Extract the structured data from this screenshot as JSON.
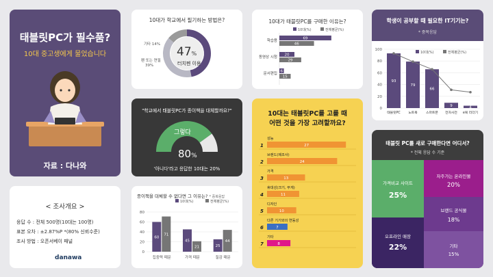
{
  "hero": {
    "title": "태블릿PC가 필수품?",
    "subtitle": "10대 중고생에게 물었습니다",
    "source": "자료 : 다나와"
  },
  "survey": {
    "heading": "< 조사개요 >",
    "lines": [
      "응답 수 : 전체 500명(10대는 100명)",
      "표본 오차 : ±2.87%P *(80% 신뢰수준)",
      "조사 방법 : 오픈서베이 패널"
    ],
    "logo": "danawa"
  },
  "study": {
    "title": "10대가 학교에서 필기하는 방법은?",
    "center_value": "47",
    "center_unit": "%",
    "center_label": "터치펜 이용",
    "other1_label": "기타 14%",
    "other2_label_a": "펜 또는 연필",
    "other2_label_b": "39%"
  },
  "replace": {
    "title": "\"학교에서 태블릿PC가 종이책을 대체할까요?\"",
    "gauge_label": "그렇다",
    "value": "80",
    "unit": "%",
    "note": "'아니다'라고 응답한 10대는 20%"
  },
  "reasons": {
    "title": "종이책을 대체할 수 없다면 그 이유는?",
    "suffix": "* 중복응답"
  },
  "purchase": {
    "title": "10대가 태블릿PC를 구매한 이유는?"
  },
  "consider": {
    "title_line1": "10대는 태블릿PC를 고를 때",
    "title_line2": "어떤 것을 가장 고려할까요?"
  },
  "it": {
    "title": "학생이 공부할 때 필요한 IT기기는?",
    "subtitle": "* 중복응답"
  },
  "where": {
    "title": "태블릿 PC를 새로 구매한다면  어디서?",
    "subtitle": "* 전체 응답 수 기준",
    "cells": [
      {
        "label": "가격비교 사이트",
        "value": "25%"
      },
      {
        "label": "자주가는 온라인몰",
        "value": "20%"
      },
      {
        "label": "브랜드 공식몰",
        "value": "18%"
      },
      {
        "label": "오프라인 매장",
        "value": "22%"
      },
      {
        "label": "기타",
        "value": "15%"
      }
    ]
  },
  "colors": {
    "purple": "#5b4a7c",
    "gray": "#767676",
    "green": "#5bae6a",
    "orange": "#f09433",
    "magenta": "#e0188a",
    "yellow": "#f6d252",
    "dark": "#3a3a3a"
  },
  "chart_data": [
    {
      "id": "study",
      "type": "pie",
      "title": "10대가 학교에서 필기하는 방법은?",
      "categories": [
        "터치펜 이용",
        "펜 또는 연필",
        "기타"
      ],
      "values": [
        47,
        39,
        14
      ]
    },
    {
      "id": "replace",
      "type": "pie",
      "title": "\"학교에서 태블릿PC가 종이책을 대체할까요?\"",
      "categories": [
        "그렇다",
        "아니다"
      ],
      "values": [
        80,
        20
      ]
    },
    {
      "id": "reasons",
      "type": "bar",
      "title": "종이책을 대체할 수 없다면 그 이유는?",
      "categories": [
        "집중력 때문",
        "가격 때문",
        "질감 때문"
      ],
      "series": [
        {
          "name": "10대(%)",
          "values": [
            60,
            45,
            25
          ]
        },
        {
          "name": "전체평균(%)",
          "values": [
            71,
            21,
            44
          ]
        }
      ],
      "ylim": [
        0,
        80
      ],
      "yticks": [
        0,
        20,
        40,
        60,
        80
      ]
    },
    {
      "id": "purchase",
      "type": "bar",
      "orientation": "horizontal",
      "title": "10대가 태블릿PC를 구매한 이유는?",
      "categories": [
        "학습용",
        "동영상 시청",
        "문서편집"
      ],
      "series": [
        {
          "name": "10대(%)",
          "values": [
            69,
            20,
            6
          ]
        },
        {
          "name": "전체평균(%)",
          "values": [
            46,
            29,
            15
          ]
        }
      ],
      "xlim": [
        0,
        100
      ]
    },
    {
      "id": "consider",
      "type": "bar",
      "orientation": "horizontal",
      "title": "10대는 태블릿PC를 고를 때 어떤 것을 가장 고려할까요?",
      "categories": [
        "성능",
        "브랜드(제조사)",
        "가격",
        "휴대성(크기, 무게)",
        "디자인",
        "다른 기기와의 연동성",
        "기타"
      ],
      "rank_labels": [
        "1",
        "2",
        "3",
        "4",
        "5",
        "6",
        "7"
      ],
      "values": [
        27,
        24,
        13,
        11,
        10,
        7,
        8
      ],
      "xlim": [
        0,
        30
      ]
    },
    {
      "id": "it",
      "type": "bar",
      "title": "학생이 공부할 때 필요한 IT기기는?",
      "categories": [
        "태블릿PC",
        "노트북",
        "스마트폰",
        "전자사전",
        "e북 리더기"
      ],
      "series": [
        {
          "name": "10대(%)",
          "values": [
            93,
            79,
            66,
            9,
            4
          ]
        },
        {
          "name": "전체평균(%)",
          "values": [
            null,
            null,
            null,
            null,
            null
          ]
        }
      ],
      "line_series_values": [
        93,
        79,
        66,
        31,
        27
      ],
      "ylim": [
        0,
        100
      ],
      "yticks": [
        0,
        20,
        40,
        60,
        80,
        100
      ]
    },
    {
      "id": "where",
      "type": "heatmap",
      "title": "태블릿 PC를 새로 구매한다면  어디서?",
      "categories": [
        "가격비교 사이트",
        "자주가는 온라인몰",
        "브랜드 공식몰",
        "오프라인 매장",
        "기타"
      ],
      "values": [
        25,
        20,
        18,
        22,
        15
      ]
    }
  ]
}
